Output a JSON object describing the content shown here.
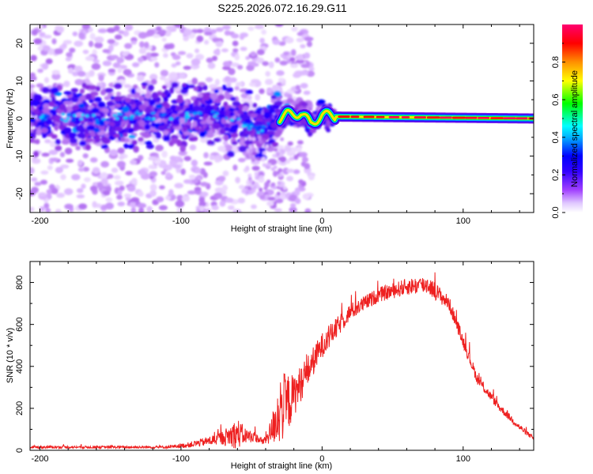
{
  "figure": {
    "title": "S225.2026.072.16.29.G11"
  },
  "chart_data": [
    {
      "type": "heatmap",
      "title": "S225.2026.072.16.29.G11",
      "xlabel": "Height of straight line (km)",
      "ylabel": "Frequency (Hz)",
      "xlim": [
        -207,
        150
      ],
      "ylim": [
        -25,
        25
      ],
      "xticks": [
        -200,
        -100,
        0,
        100
      ],
      "yticks": [
        -20,
        -10,
        0,
        10,
        20
      ],
      "colorbar": {
        "label": "Normalized spectral amplitude",
        "range": [
          0,
          1
        ],
        "ticks": [
          0.0,
          0.2,
          0.4,
          0.6,
          0.8
        ],
        "tick_labels": [
          "0.0",
          "0.2",
          "0.4",
          "0.6",
          "0.8"
        ],
        "colormap": [
          "#ffffff",
          "#d9b3ff",
          "#8a2be2",
          "#2f00ff",
          "#0000ff",
          "#00bfff",
          "#00ffff",
          "#00ff00",
          "#ffff00",
          "#ff8000",
          "#ff0000",
          "#ff0070"
        ]
      },
      "ridge": [
        {
          "x": -200,
          "f": 0.0
        },
        {
          "x": -150,
          "f": 0.5
        },
        {
          "x": -100,
          "f": 0.5
        },
        {
          "x": -80,
          "f": 1.5
        },
        {
          "x": -60,
          "f": -1.0
        },
        {
          "x": -45,
          "f": -3.0
        },
        {
          "x": -35,
          "f": -1.0
        },
        {
          "x": -25,
          "f": 1.0
        },
        {
          "x": -15,
          "f": 1.5
        },
        {
          "x": -8,
          "f": -1.5
        },
        {
          "x": 0,
          "f": 1.0
        },
        {
          "x": 10,
          "f": 0.5
        },
        {
          "x": 150,
          "f": 0.0
        }
      ]
    },
    {
      "type": "line",
      "xlabel": "Height of straight line (km)",
      "ylabel": "SNR (10 * v/v)",
      "xlim": [
        -207,
        150
      ],
      "ylim": [
        0,
        900
      ],
      "xticks": [
        -200,
        -100,
        0,
        100
      ],
      "yticks": [
        0,
        200,
        400,
        600,
        800
      ],
      "series": [
        {
          "name": "SNR",
          "color": "#ee2020",
          "envelope": [
            {
              "x": -207,
              "base": 15,
              "noise": 12
            },
            {
              "x": -110,
              "base": 15,
              "noise": 12
            },
            {
              "x": -95,
              "base": 25,
              "noise": 25
            },
            {
              "x": -80,
              "base": 45,
              "noise": 45
            },
            {
              "x": -70,
              "base": 60,
              "noise": 70
            },
            {
              "x": -60,
              "base": 80,
              "noise": 150
            },
            {
              "x": -55,
              "base": 70,
              "noise": 80
            },
            {
              "x": -48,
              "base": 65,
              "noise": 50
            },
            {
              "x": -42,
              "base": 40,
              "noise": 30
            },
            {
              "x": -36,
              "base": 90,
              "noise": 120
            },
            {
              "x": -30,
              "base": 200,
              "noise": 350
            },
            {
              "x": -25,
              "base": 220,
              "noise": 300
            },
            {
              "x": -20,
              "base": 260,
              "noise": 200
            },
            {
              "x": -10,
              "base": 380,
              "noise": 150
            },
            {
              "x": 0,
              "base": 500,
              "noise": 120
            },
            {
              "x": 20,
              "base": 660,
              "noise": 80
            },
            {
              "x": 40,
              "base": 740,
              "noise": 70
            },
            {
              "x": 60,
              "base": 780,
              "noise": 80
            },
            {
              "x": 75,
              "base": 790,
              "noise": 90
            },
            {
              "x": 90,
              "base": 700,
              "noise": 70
            },
            {
              "x": 100,
              "base": 520,
              "noise": 60
            },
            {
              "x": 110,
              "base": 340,
              "noise": 50
            },
            {
              "x": 125,
              "base": 210,
              "noise": 40
            },
            {
              "x": 140,
              "base": 110,
              "noise": 30
            },
            {
              "x": 150,
              "base": 55,
              "noise": 20
            }
          ]
        }
      ]
    }
  ]
}
